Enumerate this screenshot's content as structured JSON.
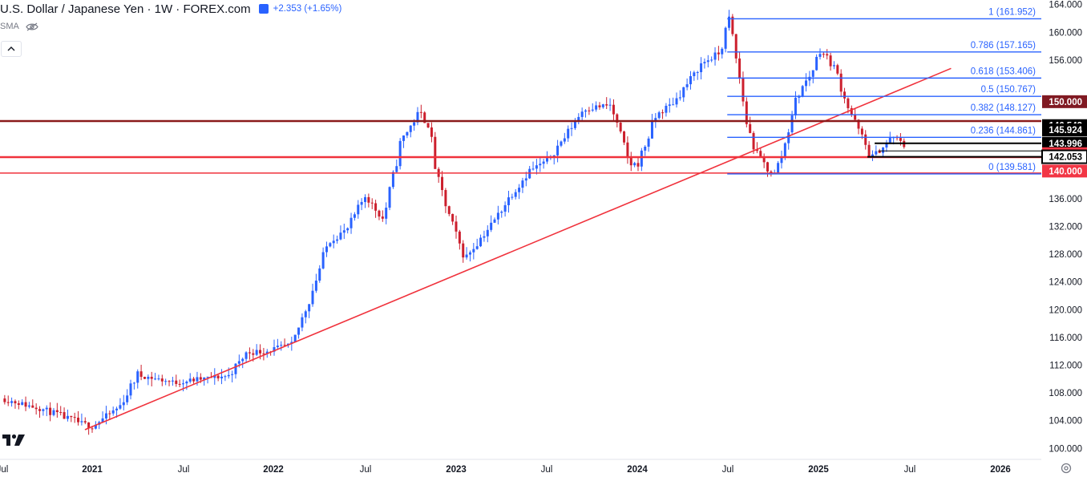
{
  "header": {
    "title": "U.S. Dollar / Japanese Yen · 1W · FOREX.com",
    "change": "+2.353 (+1.65%)",
    "indicator": "SMA"
  },
  "colors": {
    "up": "#2962ff",
    "down": "#cc1f2d",
    "fib": "#2962ff",
    "trend": "#f0323c",
    "resistance": "#8b1a1a",
    "range": "#000000"
  },
  "chart_data": {
    "type": "candlestick",
    "title": "U.S. Dollar / Japanese Yen",
    "ylim": [
      99,
      164.2
    ],
    "y_ticks": [
      100,
      104,
      108,
      112,
      116,
      120,
      124,
      128,
      132,
      136,
      140,
      156,
      160,
      164
    ],
    "x_ticks": [
      "Jul",
      "2021",
      "Jul",
      "2022",
      "Jul",
      "2023",
      "Jul",
      "2024",
      "Jul",
      "2025",
      "Jul",
      "2026"
    ],
    "price_labels": [
      {
        "label": "150.000",
        "value": 150.0,
        "color": "#801922"
      },
      {
        "label": "146.543",
        "value": 146.543,
        "color": "#000000"
      },
      {
        "label": "145.924",
        "value": 145.924,
        "color": "#000000"
      },
      {
        "label": "143.996",
        "value": 143.996,
        "color": "#000000"
      },
      {
        "label": "142.500",
        "value": 142.5,
        "color": "#f23645"
      },
      {
        "label": "142.053",
        "value": 142.053,
        "color": "#ffffff"
      },
      {
        "label": "140.000",
        "value": 140.0,
        "color": "#f23645"
      }
    ],
    "fib_levels": [
      {
        "label": "1 (161.952)",
        "value": 161.952
      },
      {
        "label": "0.786 (157.165)",
        "value": 157.165
      },
      {
        "label": "0.618 (153.406)",
        "value": 153.406
      },
      {
        "label": "0.5 (150.767)",
        "value": 150.767
      },
      {
        "label": "0.382 (148.127)",
        "value": 148.127
      },
      {
        "label": "0.236 (144.861)",
        "value": 144.861
      },
      {
        "label": "0 (139.581)",
        "value": 139.581
      }
    ],
    "horizontal_levels": [
      147.2,
      142.0,
      139.7
    ],
    "trendline": {
      "start": [
        2020.96,
        102.7
      ],
      "end": [
        2025.72,
        154.8
      ]
    },
    "range_box": {
      "top": 143.996,
      "bottom": 142.053
    },
    "price_path": [
      [
        2020.5,
        107.2
      ],
      [
        2020.75,
        105.5
      ],
      [
        2020.95,
        103.5
      ],
      [
        2021.0,
        103.2
      ],
      [
        2021.15,
        106.0
      ],
      [
        2021.25,
        110.6
      ],
      [
        2021.45,
        109.5
      ],
      [
        2021.6,
        110.0
      ],
      [
        2021.75,
        110.5
      ],
      [
        2021.85,
        113.8
      ],
      [
        2021.95,
        114.0
      ],
      [
        2022.1,
        115.0
      ],
      [
        2022.2,
        122.0
      ],
      [
        2022.3,
        130.0
      ],
      [
        2022.4,
        131.5
      ],
      [
        2022.5,
        136.5
      ],
      [
        2022.6,
        133.0
      ],
      [
        2022.7,
        144.5
      ],
      [
        2022.8,
        148.5
      ],
      [
        2022.85,
        146.5
      ],
      [
        2022.9,
        138.5
      ],
      [
        2023.0,
        130.5
      ],
      [
        2023.05,
        127.5
      ],
      [
        2023.2,
        132.5
      ],
      [
        2023.3,
        136.5
      ],
      [
        2023.4,
        140.0
      ],
      [
        2023.5,
        141.5
      ],
      [
        2023.6,
        145.0
      ],
      [
        2023.7,
        149.0
      ],
      [
        2023.85,
        149.5
      ],
      [
        2023.95,
        141.0
      ],
      [
        2024.0,
        141.0
      ],
      [
        2024.1,
        148.0
      ],
      [
        2024.2,
        150.0
      ],
      [
        2024.35,
        155.5
      ],
      [
        2024.45,
        157.0
      ],
      [
        2024.5,
        161.9
      ],
      [
        2024.55,
        154.5
      ],
      [
        2024.6,
        146.5
      ],
      [
        2024.65,
        142.5
      ],
      [
        2024.72,
        140.0
      ],
      [
        2024.75,
        139.6
      ],
      [
        2024.8,
        143.0
      ],
      [
        2024.85,
        149.0
      ],
      [
        2024.9,
        152.0
      ],
      [
        2024.95,
        154.0
      ],
      [
        2025.0,
        157.5
      ],
      [
        2025.08,
        155.0
      ],
      [
        2025.15,
        149.5
      ],
      [
        2025.2,
        146.5
      ],
      [
        2025.28,
        142.0
      ],
      [
        2025.33,
        143.0
      ],
      [
        2025.4,
        145.0
      ],
      [
        2025.47,
        143.5
      ]
    ]
  }
}
